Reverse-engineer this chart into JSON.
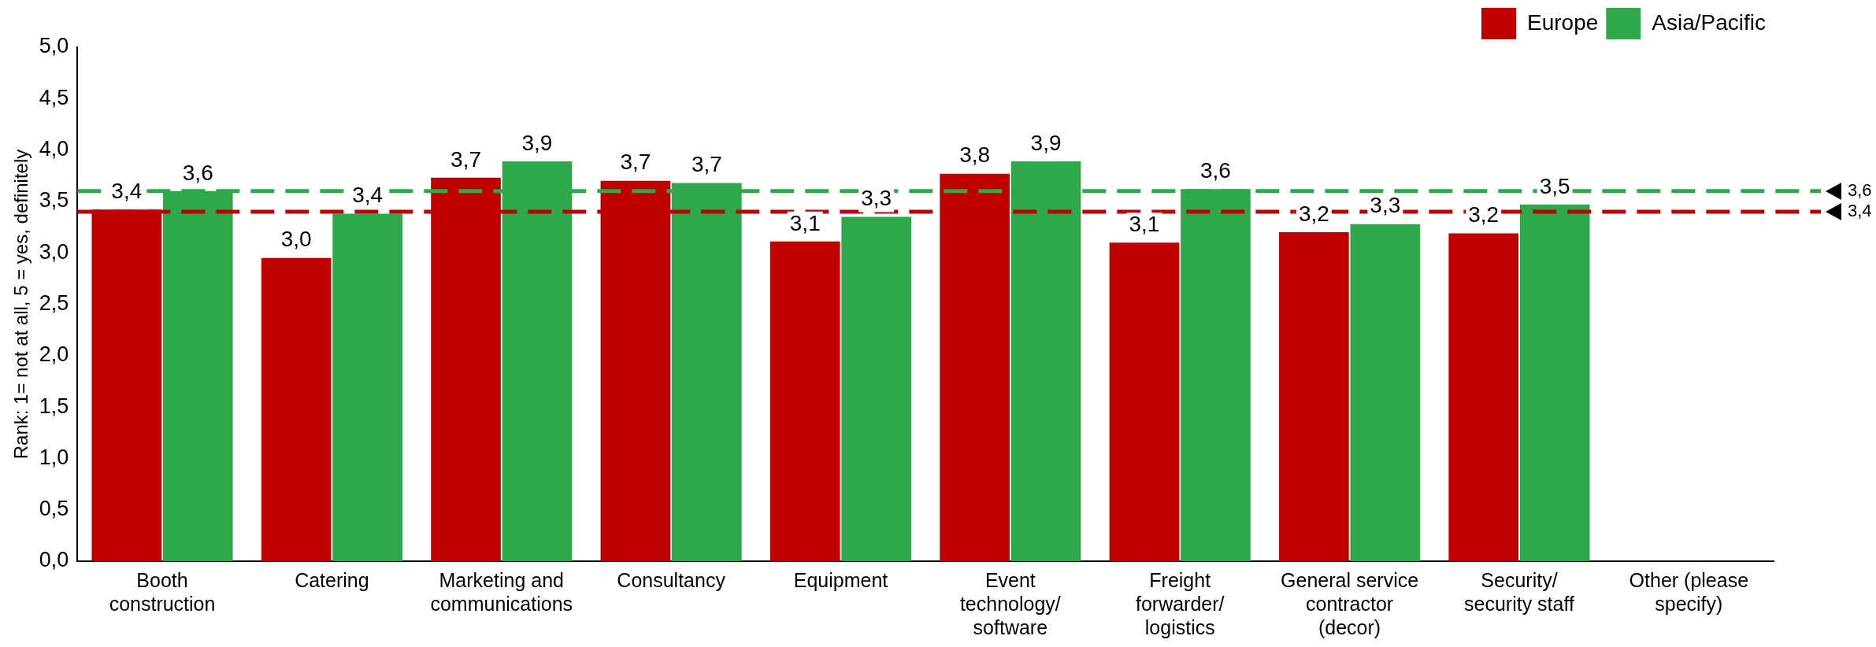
{
  "chart_data": {
    "type": "bar",
    "ylabel": "Rank: 1= not at all, 5 = yes, definitely",
    "categories": [
      "Booth construction",
      "Catering",
      "Marketing and communications",
      "Consultancy",
      "Equipment",
      "Event technology/ software",
      "Freight forwarder/ logistics",
      "General service contractor (decor)",
      "Security/ security staff",
      "Other (please specify)"
    ],
    "series": [
      {
        "name": "Europe",
        "color": "#c00000",
        "values": [
          3.42,
          2.95,
          3.73,
          3.7,
          3.11,
          3.77,
          3.1,
          3.2,
          3.19,
          null
        ],
        "value_labels": [
          "3,4",
          "3,0",
          "3,7",
          "3,7",
          "3,1",
          "3,8",
          "3,1",
          "3,2",
          "3,2",
          null
        ]
      },
      {
        "name": "Asia/Pacific",
        "color": "#2ea84a",
        "values": [
          3.6,
          3.38,
          3.89,
          3.68,
          3.35,
          3.89,
          3.62,
          3.28,
          3.47,
          null
        ],
        "value_labels": [
          "3,6",
          "3,4",
          "3,9",
          "3,7",
          "3,3",
          "3,9",
          "3,6",
          "3,3",
          "3,5",
          null
        ]
      }
    ],
    "ylim": [
      0,
      5
    ],
    "yticks": [
      {
        "value": 0,
        "label": "0,0"
      },
      {
        "value": 0.5,
        "label": "0,5"
      },
      {
        "value": 1,
        "label": "1,0"
      },
      {
        "value": 1.5,
        "label": "1,5"
      },
      {
        "value": 2,
        "label": "2,0"
      },
      {
        "value": 2.5,
        "label": "2,5"
      },
      {
        "value": 3,
        "label": "3,0"
      },
      {
        "value": 3.5,
        "label": "3,5"
      },
      {
        "value": 4,
        "label": "4,0"
      },
      {
        "value": 4.5,
        "label": "4,5"
      },
      {
        "value": 5,
        "label": "5,0"
      }
    ],
    "ref_lines": [
      {
        "axis": "y",
        "value": 3.6,
        "label": "3,6",
        "color": "#2ea84a",
        "line_style": "dashed"
      },
      {
        "axis": "y",
        "value": 3.4,
        "label": "3,4",
        "color": "#c00000",
        "line_style": "dashed"
      }
    ],
    "grid": false,
    "legend": "top right"
  }
}
